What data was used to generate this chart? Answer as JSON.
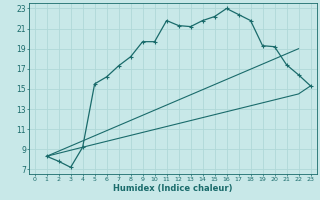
{
  "xlabel": "Humidex (Indice chaleur)",
  "bg_color": "#c8e8e8",
  "grid_color": "#b0d8d8",
  "line_color": "#1a6b6b",
  "xlim": [
    -0.5,
    23.5
  ],
  "ylim": [
    6.5,
    23.5
  ],
  "yticks": [
    7,
    9,
    11,
    13,
    15,
    17,
    19,
    21,
    23
  ],
  "xticks": [
    0,
    1,
    2,
    3,
    4,
    5,
    6,
    7,
    8,
    9,
    10,
    11,
    12,
    13,
    14,
    15,
    16,
    17,
    18,
    19,
    20,
    21,
    22,
    23
  ],
  "curve1_x": [
    1,
    2,
    3,
    4,
    5,
    6,
    7,
    8,
    9,
    10,
    11,
    12,
    13,
    14,
    15,
    16,
    17,
    18,
    19,
    20,
    21,
    22,
    23
  ],
  "curve1_y": [
    8.3,
    7.8,
    7.2,
    9.2,
    15.5,
    16.2,
    17.3,
    18.2,
    19.7,
    19.7,
    21.8,
    21.3,
    21.2,
    21.8,
    22.2,
    23.0,
    22.4,
    21.8,
    19.3,
    19.2,
    17.4,
    16.4,
    15.3
  ],
  "line1_x": [
    1,
    22
  ],
  "line1_y": [
    8.3,
    19.0
  ],
  "line2_x": [
    1,
    4,
    22,
    23
  ],
  "line2_y": [
    8.3,
    9.2,
    14.5,
    15.3
  ]
}
